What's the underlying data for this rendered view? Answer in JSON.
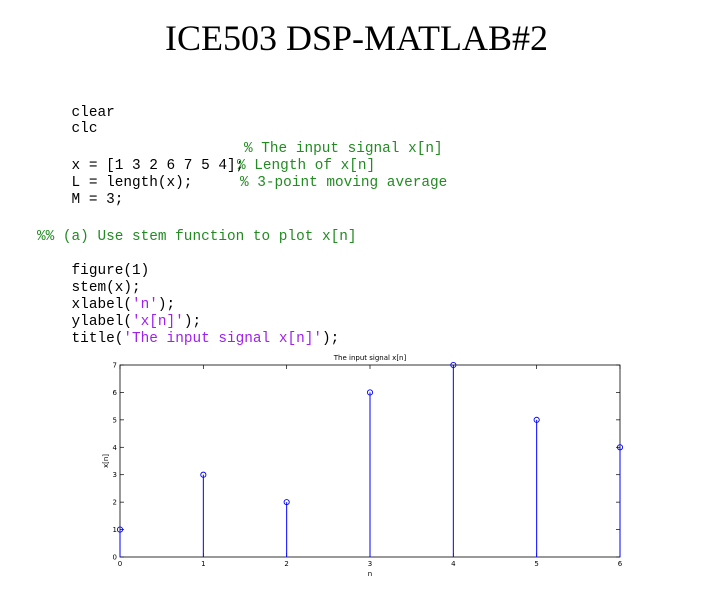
{
  "slide": {
    "title": "ICE503 DSP-MATLAB#2"
  },
  "code": {
    "lines": [
      {
        "code": "clear"
      },
      {
        "code": "clc"
      },
      {
        "code": "x = [1 3 2 6 7 5 4];",
        "comment": "% The input signal x[n]"
      },
      {
        "code": "L = length(x);",
        "comment": "% Length of x[n]"
      },
      {
        "code": "M = 3;",
        "comment": "% 3-point moving average"
      },
      {
        "comment": "%% (a) Use stem function to plot x[n]"
      },
      {
        "code": "figure(1)"
      },
      {
        "code": "stem(x);"
      },
      {
        "pre": "xlabel(",
        "str": "'n'",
        "post": ");"
      },
      {
        "pre": "ylabel(",
        "str": "'x[n]'",
        "post": ");"
      },
      {
        "pre": "title(",
        "str": "'The input signal x[n]'",
        "post": ");"
      }
    ]
  },
  "colors": {
    "comment": "#228b22",
    "string": "#a020f0",
    "stem": "#0000ff",
    "text": "#000000"
  },
  "chart_data": {
    "type": "stem",
    "title": "The input signal x[n]",
    "xlabel": "n",
    "ylabel": "x[n]",
    "x": [
      0,
      1,
      2,
      3,
      4,
      5,
      6
    ],
    "values": [
      1,
      3,
      2,
      6,
      7,
      5,
      4
    ],
    "xlim": [
      0,
      6
    ],
    "ylim": [
      0,
      7
    ],
    "xticks": [
      0,
      1,
      2,
      3,
      4,
      5,
      6
    ],
    "yticks": [
      0,
      1,
      2,
      3,
      4,
      5,
      6,
      7
    ],
    "grid": false
  }
}
